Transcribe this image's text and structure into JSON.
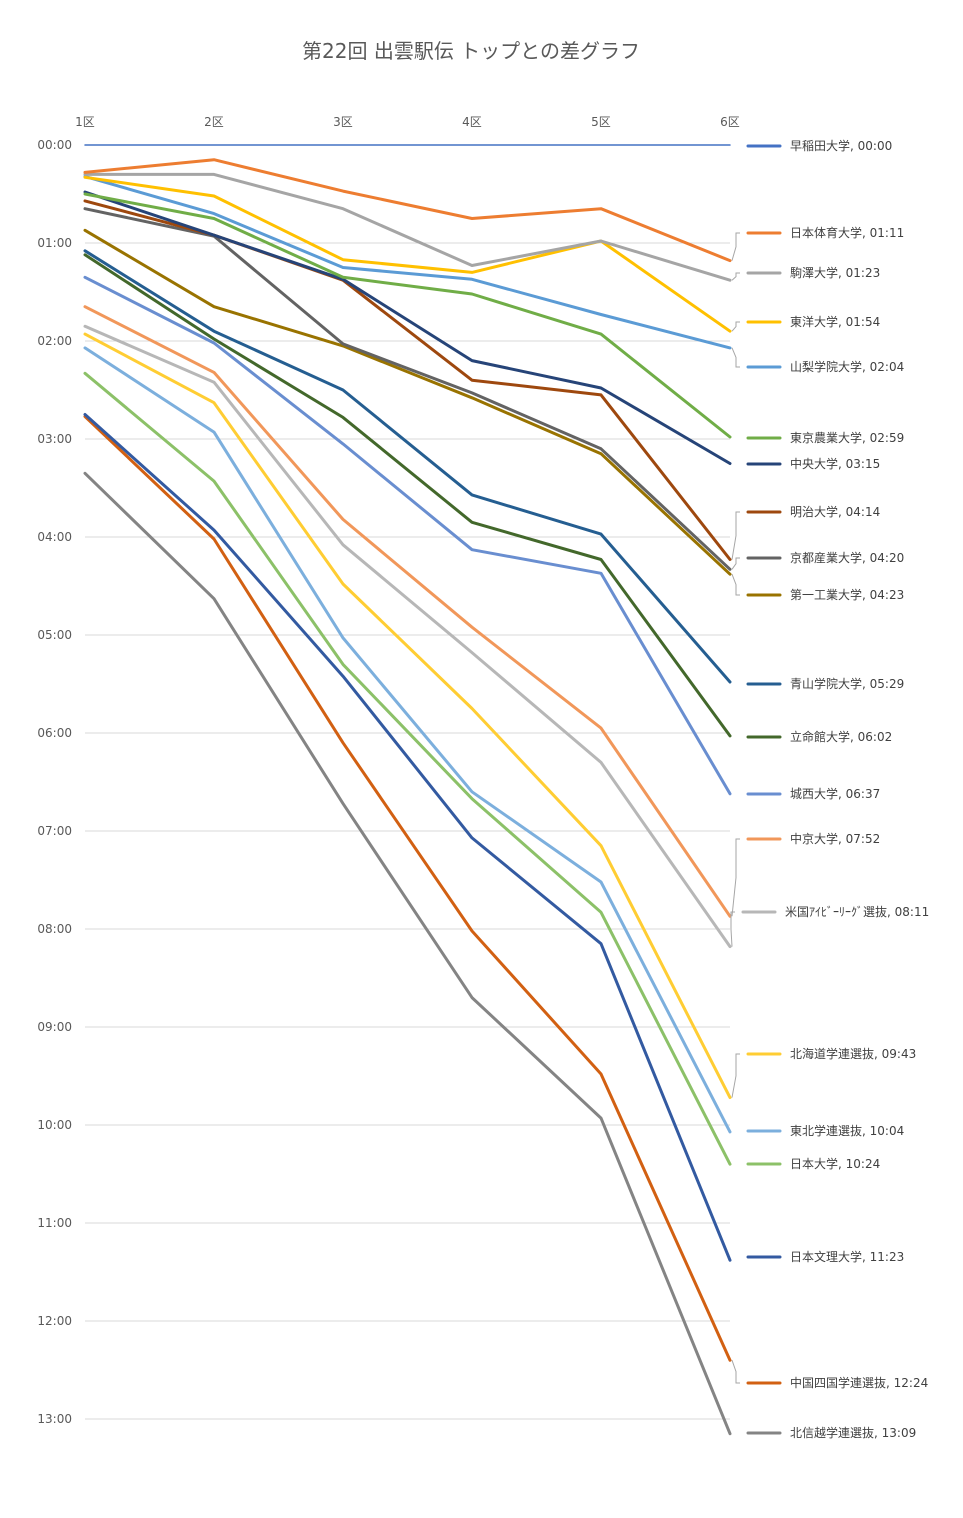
{
  "chart_data": {
    "type": "line",
    "title": "第22回 出雲駅伝 トップとの差グラフ",
    "xlabel": "",
    "ylabel": "",
    "categories": [
      "1区",
      "2区",
      "3区",
      "4区",
      "5区",
      "6区"
    ],
    "y_ticks": [
      "00:00",
      "01:00",
      "02:00",
      "03:00",
      "04:00",
      "05:00",
      "06:00",
      "07:00",
      "08:00",
      "09:00",
      "10:00",
      "11:00",
      "12:00",
      "13:00"
    ],
    "y_unit": "minutes behind leader",
    "ylim": [
      0,
      13.5
    ],
    "y_inverted": true,
    "grid": true,
    "x_axis_position": "top",
    "legend": "data labels at line ends (right)",
    "series": [
      {
        "name": "早稲田大学",
        "end_label": "早稲田大学, 00:00",
        "color": "#4472c4",
        "values": [
          0,
          0,
          0,
          0,
          0,
          0
        ]
      },
      {
        "name": "日本体育大学",
        "end_label": "日本体育大学, 01:11",
        "color": "#ed7d31",
        "values": [
          0.28,
          0.15,
          0.47,
          0.75,
          0.65,
          1.18
        ]
      },
      {
        "name": "駒澤大学",
        "end_label": "駒澤大学, 01:23",
        "color": "#a5a5a5",
        "values": [
          0.3,
          0.3,
          0.65,
          1.23,
          0.98,
          1.38
        ]
      },
      {
        "name": "東洋大学",
        "end_label": "東洋大学, 01:54",
        "color": "#ffc000",
        "values": [
          0.33,
          0.52,
          1.17,
          1.3,
          0.98,
          1.9
        ]
      },
      {
        "name": "山梨学院大学",
        "end_label": "山梨学院大学, 02:04",
        "color": "#5b9bd5",
        "values": [
          0.32,
          0.7,
          1.25,
          1.37,
          1.73,
          2.07
        ]
      },
      {
        "name": "東京農業大学",
        "end_label": "東京農業大学, 02:59",
        "color": "#70ad47",
        "values": [
          0.5,
          0.75,
          1.35,
          1.52,
          1.93,
          2.98
        ]
      },
      {
        "name": "中央大学",
        "end_label": "中央大学, 03:15",
        "color": "#264478",
        "values": [
          0.48,
          0.92,
          1.37,
          2.2,
          2.48,
          3.25
        ]
      },
      {
        "name": "明治大学",
        "end_label": "明治大学, 04:14",
        "color": "#9e480e",
        "values": [
          0.57,
          0.92,
          1.38,
          2.4,
          2.55,
          4.23
        ]
      },
      {
        "name": "京都産業大学",
        "end_label": "京都産業大学, 04:20",
        "color": "#636363",
        "values": [
          0.65,
          0.93,
          2.03,
          2.53,
          3.1,
          4.33
        ]
      },
      {
        "name": "第一工業大学",
        "end_label": "第一工業大学, 04:23",
        "color": "#997300",
        "values": [
          0.87,
          1.65,
          2.05,
          2.58,
          3.15,
          4.38
        ]
      },
      {
        "name": "青山学院大学",
        "end_label": "青山学院大学, 05:29",
        "color": "#255e91",
        "values": [
          1.08,
          1.9,
          2.5,
          3.57,
          3.97,
          5.48
        ]
      },
      {
        "name": "立命館大学",
        "end_label": "立命館大学, 06:02",
        "color": "#43682b",
        "values": [
          1.12,
          1.98,
          2.78,
          3.85,
          4.23,
          6.03
        ]
      },
      {
        "name": "城西大学",
        "end_label": "城西大学, 06:37",
        "color": "#698ed0",
        "values": [
          1.35,
          2.02,
          3.05,
          4.13,
          4.37,
          6.62
        ]
      },
      {
        "name": "中京大学",
        "end_label": "中京大学, 07:52",
        "color": "#f1975a",
        "values": [
          1.65,
          2.32,
          3.82,
          4.92,
          5.95,
          7.87
        ]
      },
      {
        "name": "米国ｱｲﾋﾞｰﾘｰｸﾞ選抜",
        "end_label": "米国ｱｲﾋﾞｰﾘｰｸﾞ選抜, 08:11",
        "color": "#b7b7b7",
        "values": [
          1.85,
          2.42,
          4.08,
          5.18,
          6.3,
          8.18
        ]
      },
      {
        "name": "北海道学連選抜",
        "end_label": "北海道学連選抜, 09:43",
        "color": "#ffcd33",
        "values": [
          1.93,
          2.63,
          4.48,
          5.75,
          7.15,
          9.72
        ]
      },
      {
        "name": "東北学連選抜",
        "end_label": "東北学連選抜, 10:04",
        "color": "#7cafdd",
        "values": [
          2.07,
          2.93,
          5.03,
          6.6,
          7.52,
          10.07
        ]
      },
      {
        "name": "日本大学",
        "end_label": "日本大学, 10:24",
        "color": "#8cc168",
        "values": [
          2.33,
          3.43,
          5.3,
          6.67,
          7.83,
          10.4
        ]
      },
      {
        "name": "日本文理大学",
        "end_label": "日本文理大学, 11:23",
        "color": "#335aa1",
        "values": [
          2.75,
          3.93,
          5.42,
          7.07,
          8.15,
          11.38
        ]
      },
      {
        "name": "中国四国学連選抜",
        "end_label": "中国四国学連選抜, 12:24",
        "color": "#d26012",
        "values": [
          2.77,
          4.02,
          6.1,
          8.02,
          9.48,
          12.4
        ]
      },
      {
        "name": "北信越学連選抜",
        "end_label": "北信越学連選抜, 13:09",
        "color": "#848484",
        "values": [
          3.35,
          4.63,
          6.72,
          8.7,
          9.93,
          13.15
        ]
      }
    ]
  }
}
